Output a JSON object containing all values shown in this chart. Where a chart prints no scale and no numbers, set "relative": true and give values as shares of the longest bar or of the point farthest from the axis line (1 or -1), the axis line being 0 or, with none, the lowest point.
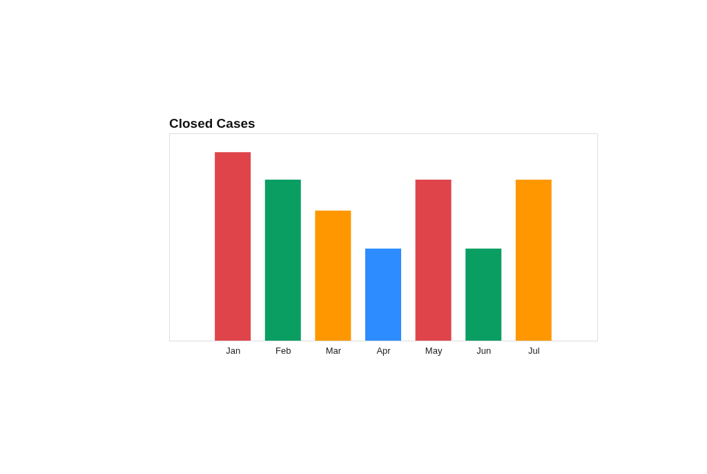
{
  "chart_data": {
    "type": "bar",
    "title": "Closed Cases",
    "categories": [
      "Jan",
      "Feb",
      "Mar",
      "Apr",
      "May",
      "Jun",
      "Jul"
    ],
    "values": [
      1,
      0.854,
      0.69,
      0.489,
      0.854,
      0.489,
      0.854
    ],
    "colors": [
      "#e0444b",
      "#0a9e63",
      "#ff9800",
      "#2d8cff",
      "#e0444b",
      "#0a9e63",
      "#ff9800"
    ],
    "relative": true,
    "grid": false
  }
}
